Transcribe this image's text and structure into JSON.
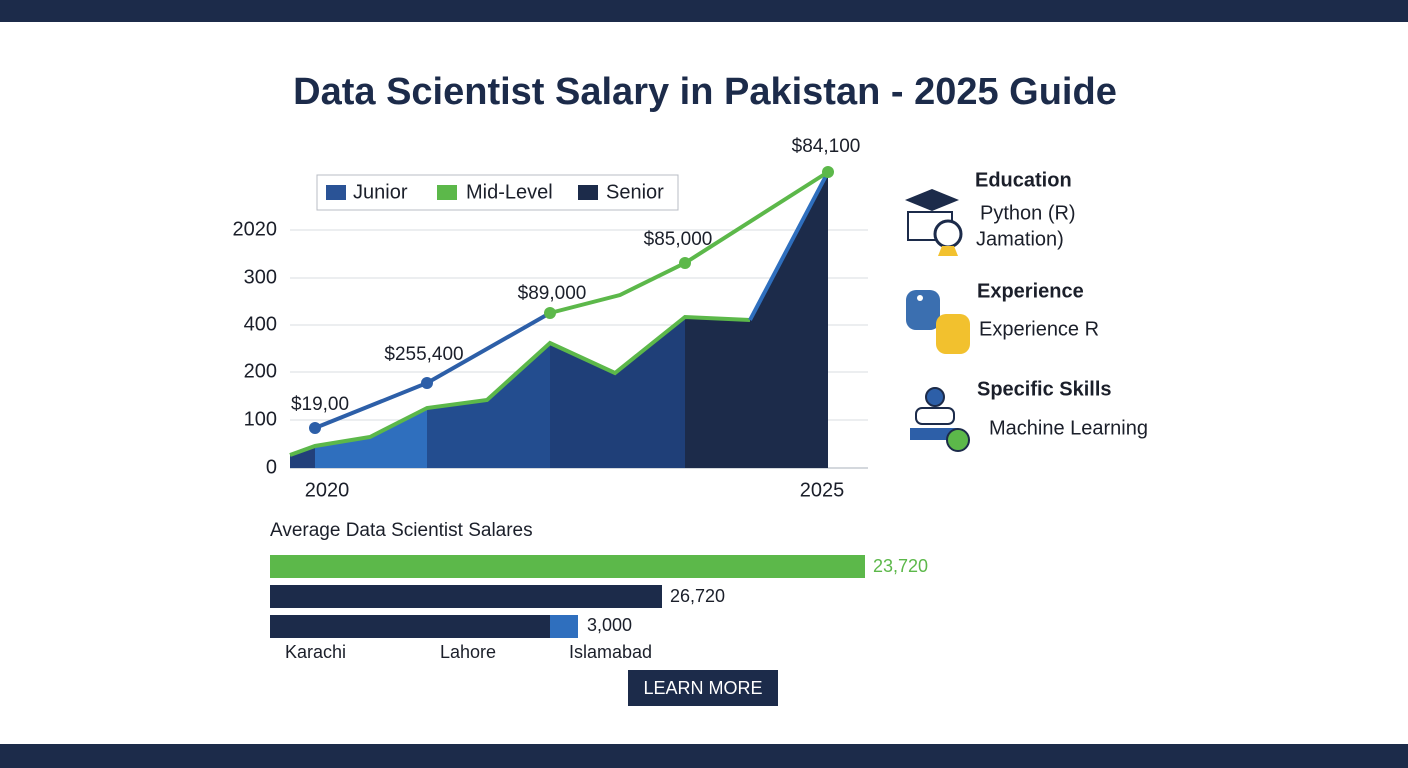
{
  "header": {
    "title": "Data Scientist Salary in Pakistan - 2025 Guide"
  },
  "chart": {
    "legend": [
      "Junior",
      "Mid-Level",
      "Senior"
    ],
    "y_axis_labels": [
      "2020",
      "300",
      "400",
      "200",
      "100",
      "0"
    ],
    "x_axis_labels": [
      "2020",
      "2025"
    ],
    "point_labels": [
      "$19,00",
      "$255,400",
      "$89,000",
      "$85,000",
      "$84,100"
    ]
  },
  "sidebar": [
    {
      "heading": "Education",
      "lines": [
        "Python (R)",
        "Jamation)"
      ]
    },
    {
      "heading": "Experience",
      "lines": [
        "Experience R"
      ]
    },
    {
      "heading": "Specific Skills",
      "lines": [
        "Machine Learning"
      ]
    }
  ],
  "salaries": {
    "title": "Average Data Scientist Salares",
    "bar_labels": [
      "23,720",
      "26,720",
      "3,000"
    ],
    "cities": [
      "Karachi",
      "Lahore",
      "Islamabad"
    ]
  },
  "button": "LEARN MORE"
}
